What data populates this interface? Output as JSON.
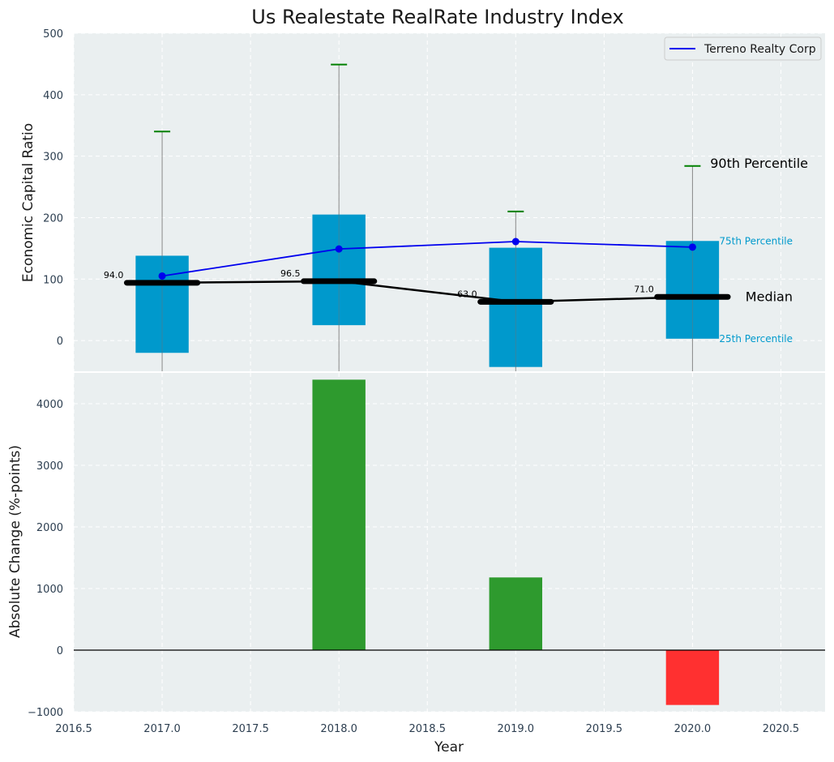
{
  "chart_data": [
    {
      "type": "box",
      "title": "Us Realestate RealRate Industry Index",
      "ylabel": "Economic Capital Ratio",
      "ylim": [
        -50,
        500
      ],
      "xlim": [
        2016.5,
        2020.75
      ],
      "yticks": [
        0,
        100,
        200,
        300,
        400,
        500
      ],
      "categories": [
        "2017.0",
        "2018.0",
        "2019.0",
        "2020.0"
      ],
      "x": [
        2017,
        2018,
        2019,
        2020
      ],
      "p25": [
        -20,
        25,
        -43,
        3
      ],
      "p75": [
        138,
        205,
        151,
        162
      ],
      "median": [
        94.0,
        96.5,
        63.0,
        71.0
      ],
      "median_labels": [
        "94.0",
        "96.5",
        "63.0",
        "71.0"
      ],
      "p90": [
        340,
        449,
        210,
        284
      ],
      "series": [
        {
          "name": "Terreno Realty Corp",
          "values": [
            105,
            149,
            161,
            152
          ],
          "color": "#0000ee"
        }
      ],
      "annotations": {
        "p90": "90th Percentile",
        "p75": "75th Percentile",
        "median": "Median",
        "p25": "25th Percentile"
      },
      "legend": "top-right",
      "grid": true,
      "colors": {
        "box": "#0099cc",
        "median": "#000000",
        "whisker": "#888888",
        "cap": "#008000",
        "background": "#eaeff0"
      }
    },
    {
      "type": "bar",
      "xlabel": "Year",
      "ylabel": "Absolute Change (%-points)",
      "ylim": [
        -1000,
        4500
      ],
      "yticks": [
        -1000,
        0,
        1000,
        2000,
        3000,
        4000
      ],
      "xticks": [
        2016.5,
        2017.0,
        2017.5,
        2018.0,
        2018.5,
        2019.0,
        2019.5,
        2020.0,
        2020.5
      ],
      "xtick_labels": [
        "2016.5",
        "2017.0",
        "2017.5",
        "2018.0",
        "2018.5",
        "2019.0",
        "2019.5",
        "2020.0",
        "2020.5"
      ],
      "x": [
        2018,
        2019,
        2020
      ],
      "values": [
        4390,
        1180,
        -890
      ],
      "grid": true,
      "colors": {
        "positive": "#2e9a2e",
        "negative": "#ff3030",
        "background": "#eaeff0"
      }
    }
  ]
}
